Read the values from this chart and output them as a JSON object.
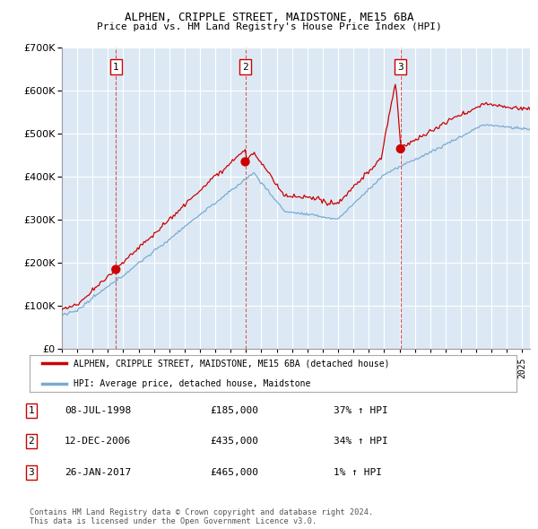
{
  "title1": "ALPHEN, CRIPPLE STREET, MAIDSTONE, ME15 6BA",
  "title2": "Price paid vs. HM Land Registry's House Price Index (HPI)",
  "legend_red": "ALPHEN, CRIPPLE STREET, MAIDSTONE, ME15 6BA (detached house)",
  "legend_blue": "HPI: Average price, detached house, Maidstone",
  "sale1_label": "1",
  "sale1_date": "08-JUL-1998",
  "sale1_price": "£185,000",
  "sale1_hpi": "37% ↑ HPI",
  "sale1_year": 1998.52,
  "sale1_value": 185000,
  "sale2_label": "2",
  "sale2_date": "12-DEC-2006",
  "sale2_price": "£435,000",
  "sale2_hpi": "34% ↑ HPI",
  "sale2_year": 2006.95,
  "sale2_value": 435000,
  "sale3_label": "3",
  "sale3_date": "26-JAN-2017",
  "sale3_price": "£465,000",
  "sale3_hpi": "1% ↑ HPI",
  "sale3_year": 2017.07,
  "sale3_value": 465000,
  "plot_bg": "#dce9f5",
  "red_color": "#cc0000",
  "blue_color": "#7aabcf",
  "footnote": "Contains HM Land Registry data © Crown copyright and database right 2024.\nThis data is licensed under the Open Government Licence v3.0.",
  "ylim_max": 700000,
  "ylim_min": 0,
  "xmin": 1995,
  "xmax": 2025.5
}
